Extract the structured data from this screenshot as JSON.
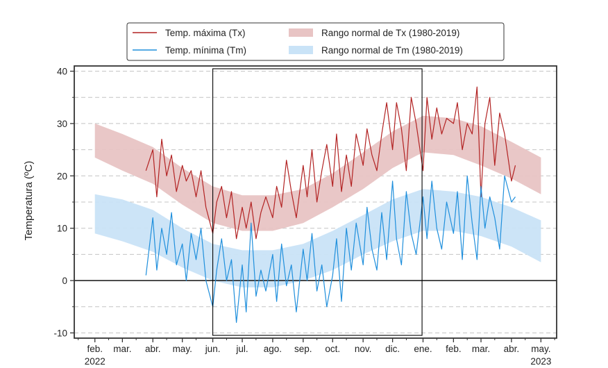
{
  "chart_data": {
    "type": "line",
    "ylabel": "Temperatura (ºC)",
    "xlabel": "",
    "title": "",
    "ylim": [
      -11,
      41
    ],
    "xlim": [
      "2022-01-11",
      "2023-05-17"
    ],
    "y_ticks": [
      -10,
      0,
      10,
      20,
      30,
      40
    ],
    "y_minor_step": 5,
    "grid": "horizontal dashed",
    "zero_line": true,
    "legend_position": "top-center, 2 columns, outside axes",
    "x_ticks": [
      {
        "date": "2022-02-01",
        "label": "feb."
      },
      {
        "date": "2022-03-01",
        "label": "mar."
      },
      {
        "date": "2022-04-01",
        "label": "abr."
      },
      {
        "date": "2022-05-01",
        "label": "may."
      },
      {
        "date": "2022-06-01",
        "label": "jun."
      },
      {
        "date": "2022-07-01",
        "label": "jul."
      },
      {
        "date": "2022-08-01",
        "label": "ago."
      },
      {
        "date": "2022-09-01",
        "label": "sep."
      },
      {
        "date": "2022-10-01",
        "label": "oct."
      },
      {
        "date": "2022-11-01",
        "label": "nov."
      },
      {
        "date": "2022-12-01",
        "label": "dic."
      },
      {
        "date": "2023-01-01",
        "label": "ene."
      },
      {
        "date": "2023-02-01",
        "label": "feb."
      },
      {
        "date": "2023-03-01",
        "label": "mar."
      },
      {
        "date": "2023-04-01",
        "label": "abr."
      },
      {
        "date": "2023-05-01",
        "label": "may."
      }
    ],
    "year_labels": [
      {
        "date": "2022-02-01",
        "label": "2022"
      },
      {
        "date": "2023-05-01",
        "label": "2023"
      }
    ],
    "highlight_range": [
      "2022-06-01",
      "2022-12-31"
    ],
    "bands": [
      {
        "name": "Rango normal de Tx (1980-2019)",
        "color": "#e8c4c4",
        "x": [
          "2022-02-01",
          "2022-03-01",
          "2022-04-01",
          "2022-05-01",
          "2022-06-01",
          "2022-07-01",
          "2022-08-01",
          "2022-09-01",
          "2022-10-01",
          "2022-11-01",
          "2022-12-01",
          "2023-01-01",
          "2023-02-01",
          "2023-03-01",
          "2023-04-01",
          "2023-05-01"
        ],
        "low": [
          23.5,
          21,
          18.5,
          14.5,
          11,
          9.5,
          9.5,
          11,
          14,
          17.5,
          21.5,
          24.5,
          24,
          22,
          19.5,
          16.5
        ],
        "high": [
          30,
          28,
          25.5,
          21.5,
          18,
          16.3,
          16.3,
          17.5,
          20.5,
          24.5,
          28.5,
          31.5,
          31,
          29.5,
          26.5,
          23.5
        ]
      },
      {
        "name": "Rango normal de Tm (1980-2019)",
        "color": "#c9e3f7",
        "x": [
          "2022-02-01",
          "2022-03-01",
          "2022-04-01",
          "2022-05-01",
          "2022-06-01",
          "2022-07-01",
          "2022-08-01",
          "2022-09-01",
          "2022-10-01",
          "2022-11-01",
          "2022-12-01",
          "2023-01-01",
          "2023-02-01",
          "2023-03-01",
          "2023-04-01",
          "2023-05-01"
        ],
        "low": [
          9,
          7.5,
          5.5,
          2.5,
          0,
          -1.3,
          -1.3,
          0,
          2,
          5,
          7.5,
          9.5,
          9.5,
          8.5,
          6.5,
          3.5
        ],
        "high": [
          16.5,
          15.5,
          13.5,
          10,
          7,
          5.8,
          5.8,
          7,
          9.5,
          12.5,
          15.5,
          17.5,
          17,
          16,
          14,
          11.5
        ]
      }
    ],
    "series": [
      {
        "name": "Temp. máxima (Tx)",
        "color": "#b22222",
        "x": [
          "2022-03-25",
          "2022-04-01",
          "2022-04-05",
          "2022-04-10",
          "2022-04-15",
          "2022-04-20",
          "2022-04-25",
          "2022-05-01",
          "2022-05-05",
          "2022-05-10",
          "2022-05-15",
          "2022-05-20",
          "2022-05-25",
          "2022-06-01",
          "2022-06-05",
          "2022-06-10",
          "2022-06-15",
          "2022-06-20",
          "2022-06-25",
          "2022-07-01",
          "2022-07-05",
          "2022-07-10",
          "2022-07-15",
          "2022-07-20",
          "2022-07-25",
          "2022-08-01",
          "2022-08-05",
          "2022-08-10",
          "2022-08-15",
          "2022-08-20",
          "2022-08-25",
          "2022-09-01",
          "2022-09-05",
          "2022-09-10",
          "2022-09-15",
          "2022-09-20",
          "2022-09-25",
          "2022-10-01",
          "2022-10-05",
          "2022-10-10",
          "2022-10-15",
          "2022-10-20",
          "2022-10-25",
          "2022-11-01",
          "2022-11-05",
          "2022-11-10",
          "2022-11-15",
          "2022-11-20",
          "2022-11-25",
          "2022-12-01",
          "2022-12-05",
          "2022-12-10",
          "2022-12-15",
          "2022-12-20",
          "2022-12-25",
          "2023-01-01",
          "2023-01-05",
          "2023-01-10",
          "2023-01-15",
          "2023-01-20",
          "2023-01-25",
          "2023-02-01",
          "2023-02-05",
          "2023-02-10",
          "2023-02-15",
          "2023-02-20",
          "2023-02-25",
          "2023-03-01",
          "2023-03-05",
          "2023-03-10",
          "2023-03-15",
          "2023-03-20",
          "2023-03-25",
          "2023-04-01",
          "2023-04-05"
        ],
        "values": [
          21,
          25,
          16,
          27,
          20,
          24,
          17,
          22,
          19,
          21,
          16,
          21,
          14,
          9,
          15,
          18,
          12,
          17,
          8,
          14,
          10,
          15,
          8,
          13,
          16,
          12,
          18,
          14,
          23,
          17,
          12,
          22,
          16,
          25,
          15,
          21,
          26,
          18,
          28,
          17,
          24,
          18,
          28,
          22,
          29,
          24,
          21,
          28,
          34,
          25,
          34,
          29,
          21,
          35,
          30,
          21,
          35,
          27,
          33,
          28,
          31,
          30,
          34,
          25,
          30,
          28,
          37,
          16,
          30,
          35,
          22,
          32,
          28,
          19,
          22
        ]
      },
      {
        "name": "Temp. mínima (Tm)",
        "color": "#1f8fdc",
        "x": [
          "2022-03-25",
          "2022-04-01",
          "2022-04-05",
          "2022-04-10",
          "2022-04-15",
          "2022-04-20",
          "2022-04-25",
          "2022-05-01",
          "2022-05-05",
          "2022-05-10",
          "2022-05-15",
          "2022-05-20",
          "2022-05-25",
          "2022-06-01",
          "2022-06-05",
          "2022-06-10",
          "2022-06-15",
          "2022-06-20",
          "2022-06-25",
          "2022-07-01",
          "2022-07-05",
          "2022-07-10",
          "2022-07-15",
          "2022-07-20",
          "2022-07-25",
          "2022-08-01",
          "2022-08-05",
          "2022-08-10",
          "2022-08-15",
          "2022-08-20",
          "2022-08-25",
          "2022-09-01",
          "2022-09-05",
          "2022-09-10",
          "2022-09-15",
          "2022-09-20",
          "2022-09-25",
          "2022-10-01",
          "2022-10-05",
          "2022-10-10",
          "2022-10-15",
          "2022-10-20",
          "2022-10-25",
          "2022-11-01",
          "2022-11-05",
          "2022-11-10",
          "2022-11-15",
          "2022-11-20",
          "2022-11-25",
          "2022-12-01",
          "2022-12-05",
          "2022-12-10",
          "2022-12-15",
          "2022-12-20",
          "2022-12-25",
          "2023-01-01",
          "2023-01-05",
          "2023-01-10",
          "2023-01-15",
          "2023-01-20",
          "2023-01-25",
          "2023-02-01",
          "2023-02-05",
          "2023-02-10",
          "2023-02-15",
          "2023-02-20",
          "2023-02-25",
          "2023-03-01",
          "2023-03-05",
          "2023-03-10",
          "2023-03-15",
          "2023-03-20",
          "2023-03-25",
          "2023-04-01",
          "2023-04-05"
        ],
        "values": [
          1,
          12,
          2,
          10,
          5,
          13,
          3,
          7,
          0,
          9,
          4,
          10,
          0,
          -5,
          2,
          8,
          0,
          4,
          -8,
          3,
          -6,
          11,
          -3,
          2,
          -2,
          5,
          -4,
          7,
          -1,
          3,
          -6,
          6,
          0,
          9,
          -2,
          3,
          -5,
          1,
          8,
          -4,
          10,
          2,
          11,
          3,
          14,
          6,
          2,
          13,
          4,
          19,
          8,
          3,
          17,
          9,
          5,
          16,
          8,
          19,
          10,
          6,
          15,
          9,
          17,
          4,
          20,
          11,
          4,
          18,
          10,
          16,
          12,
          6,
          20,
          15,
          16
        ]
      }
    ]
  },
  "legend": {
    "items": [
      {
        "label": "Temp. máxima (Tx)",
        "kind": "line",
        "color": "#b22222"
      },
      {
        "label": "Rango normal de Tx (1980-2019)",
        "kind": "patch",
        "color": "#e8c4c4"
      },
      {
        "label": "Temp. mínima (Tm)",
        "kind": "line",
        "color": "#1f8fdc"
      },
      {
        "label": "Rango normal de Tm (1980-2019)",
        "kind": "patch",
        "color": "#c9e3f7"
      }
    ]
  }
}
